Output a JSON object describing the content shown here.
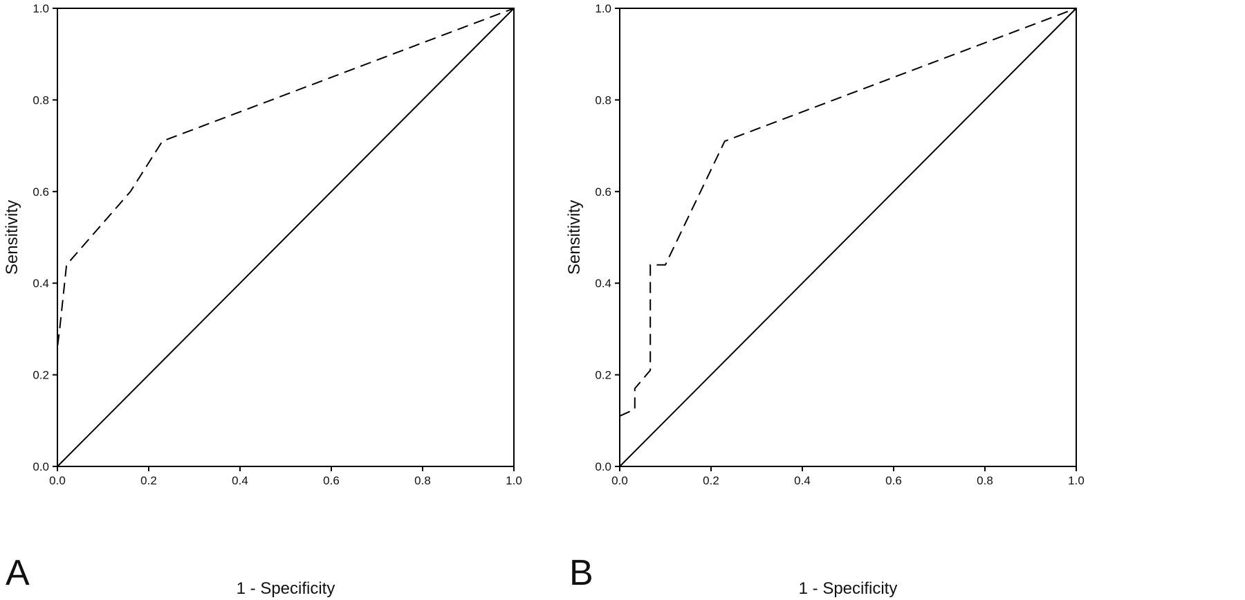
{
  "chart_data": [
    {
      "type": "line",
      "panel_label": "A",
      "xlabel": "1 - Specificity",
      "ylabel": "Sensitivity",
      "xlim": [
        0,
        1
      ],
      "ylim": [
        0,
        1
      ],
      "xticks": [
        "0.0",
        "0.2",
        "0.4",
        "0.6",
        "0.8",
        "1.0"
      ],
      "yticks": [
        "0.0",
        "0.2",
        "0.4",
        "0.6",
        "0.8",
        "1.0"
      ],
      "grid": false,
      "legend": "none",
      "series": [
        {
          "style": "dashed",
          "x": [
            0.0,
            0.0,
            0.005,
            0.02,
            0.16,
            0.23,
            1.0
          ],
          "y": [
            0.0,
            0.26,
            0.3,
            0.44,
            0.6,
            0.71,
            1.0
          ]
        },
        {
          "style": "solid",
          "x": [
            0.0,
            1.0
          ],
          "y": [
            0.0,
            1.0
          ]
        }
      ]
    },
    {
      "type": "line",
      "panel_label": "B",
      "xlabel": "1 - Specificity",
      "ylabel": "Sensitivity",
      "xlim": [
        0,
        1
      ],
      "ylim": [
        0,
        1
      ],
      "xticks": [
        "0.0",
        "0.2",
        "0.4",
        "0.6",
        "0.8",
        "1.0"
      ],
      "yticks": [
        "0.0",
        "0.2",
        "0.4",
        "0.6",
        "0.8",
        "1.0"
      ],
      "grid": false,
      "legend": "none",
      "series": [
        {
          "style": "dashed",
          "x": [
            0.0,
            0.033,
            0.033,
            0.067,
            0.067,
            0.1,
            0.23,
            1.0
          ],
          "y": [
            0.11,
            0.125,
            0.17,
            0.21,
            0.44,
            0.44,
            0.71,
            1.0
          ]
        },
        {
          "style": "solid",
          "x": [
            0.0,
            1.0
          ],
          "y": [
            0.0,
            1.0
          ]
        }
      ]
    }
  ]
}
